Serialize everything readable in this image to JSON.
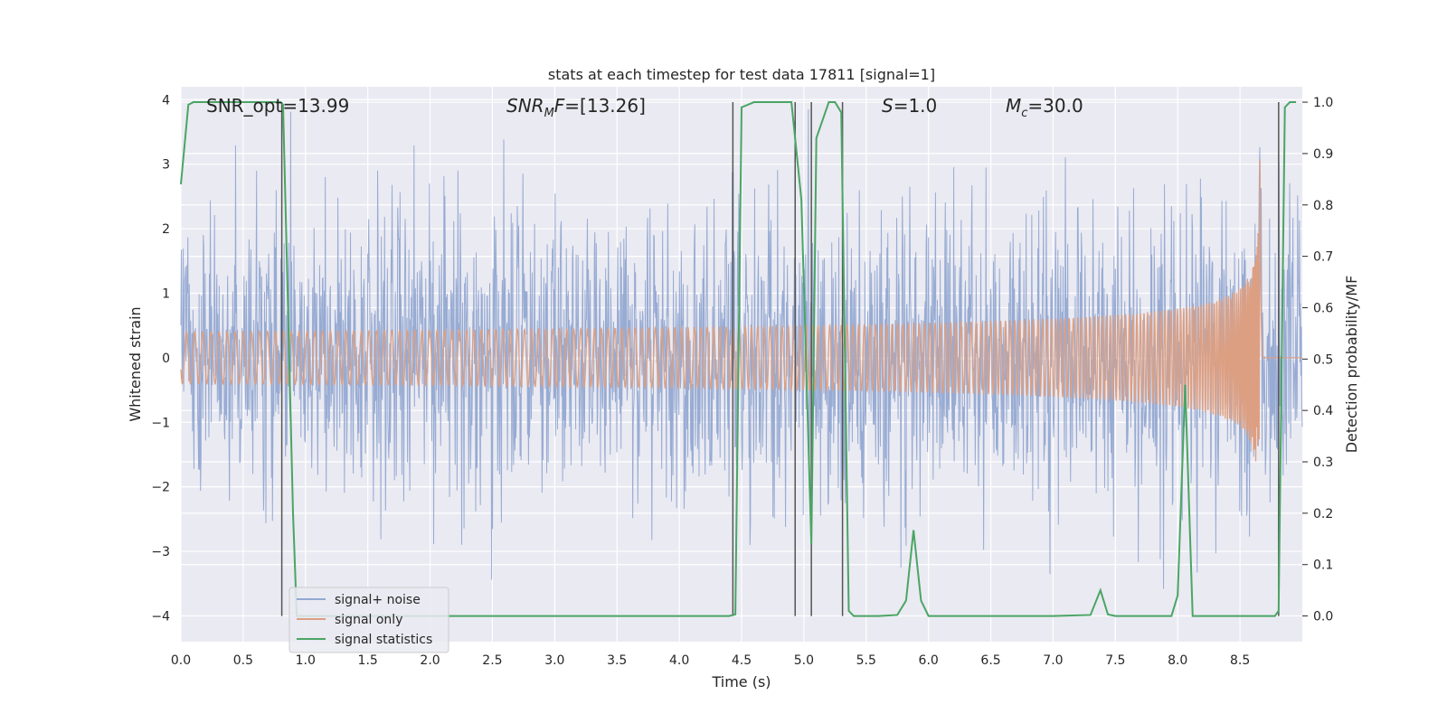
{
  "chart_data": {
    "type": "line",
    "title": "stats at each timestep for test data 17811 [signal=1]",
    "xlabel": "Time (s)",
    "ylabel": "Whitened strain",
    "y2label": "Detection probability/MF",
    "xlim": [
      0,
      9
    ],
    "ylim": [
      -4.4,
      4.2
    ],
    "y2lim": [
      -0.05,
      1.03
    ],
    "x_ticks": [
      "0.0",
      "0.5",
      "1.0",
      "1.5",
      "2.0",
      "2.5",
      "3.0",
      "3.5",
      "4.0",
      "4.5",
      "5.0",
      "5.5",
      "6.0",
      "6.5",
      "7.0",
      "7.5",
      "8.0",
      "8.5"
    ],
    "y_ticks": [
      "4",
      "3",
      "2",
      "1",
      "0",
      "−1",
      "−2",
      "−3",
      "−4"
    ],
    "y2_ticks": [
      "1.0",
      "0.9",
      "0.8",
      "0.7",
      "0.6",
      "0.5",
      "0.4",
      "0.3",
      "0.2",
      "0.1",
      "0.0"
    ],
    "grid": true,
    "legend_position": "lower-left",
    "annotations": [
      {
        "id": "snr_opt",
        "text": "SNR_opt=13.99",
        "x": 0.2
      },
      {
        "id": "snr_mf",
        "text": "SNR_MF=[13.26]",
        "x": 2.6
      },
      {
        "id": "s_val",
        "text": "S=1.0",
        "x": 5.6
      },
      {
        "id": "mc_val",
        "text": "M_c=30.0",
        "x": 6.6
      }
    ],
    "vertical_markers": [
      0.81,
      4.43,
      4.93,
      5.06,
      5.31,
      8.81
    ],
    "series": [
      {
        "name": "signal+ noise",
        "color": "#92a8d1",
        "description_type": "noise",
        "typical_amplitude": 1.5,
        "peak_amplitude": 3.4
      },
      {
        "name": "signal only",
        "color": "#dd9f82",
        "description_type": "chirp",
        "merger_time": 8.66,
        "peak_amplitude": 3.5
      },
      {
        "name": "signal statistics",
        "color": "#4aa564",
        "axis": "y2",
        "x": [
          0.0,
          0.06,
          0.1,
          0.2,
          0.4,
          0.6,
          0.7,
          0.8,
          0.82,
          0.9,
          0.93,
          1.0,
          2.0,
          3.0,
          4.0,
          4.2,
          4.4,
          4.45,
          4.5,
          4.6,
          4.8,
          4.9,
          4.98,
          5.06,
          5.1,
          5.2,
          5.25,
          5.3,
          5.36,
          5.4,
          5.5,
          5.6,
          5.75,
          5.82,
          5.88,
          5.94,
          6.0,
          6.5,
          7.0,
          7.3,
          7.38,
          7.44,
          7.5,
          7.95,
          8.0,
          8.06,
          8.12,
          8.5,
          8.7,
          8.78,
          8.81,
          8.86,
          8.9,
          8.95
        ],
        "y": [
          0.84,
          0.995,
          1.0,
          1.0,
          1.0,
          1.0,
          1.0,
          1.0,
          0.995,
          0.2,
          0.0,
          0.0,
          0.0,
          0.0,
          0.0,
          0.0,
          0.0,
          0.003,
          0.99,
          1.0,
          1.0,
          1.0,
          0.81,
          0.14,
          0.93,
          1.0,
          1.0,
          0.98,
          0.01,
          0.0,
          0.0,
          0.0,
          0.002,
          0.03,
          0.167,
          0.03,
          0.0,
          0.0,
          0.0,
          0.002,
          0.05,
          0.003,
          0.0,
          0.0,
          0.04,
          0.45,
          0.0,
          0.0,
          0.0,
          0.0,
          0.01,
          0.99,
          1.0,
          1.0
        ]
      }
    ]
  }
}
